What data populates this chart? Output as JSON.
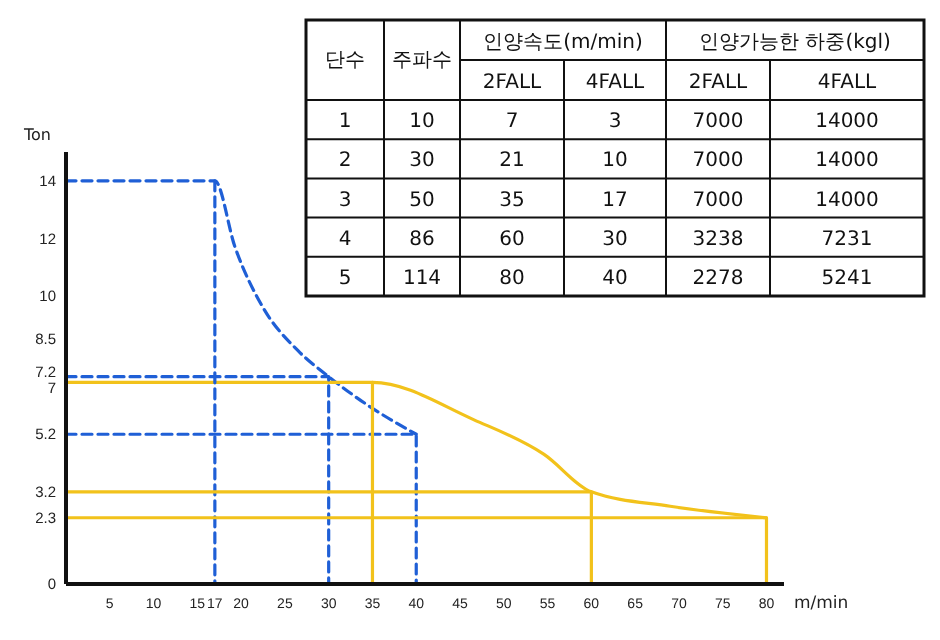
{
  "chart_data": {
    "type": "line",
    "xlabel": "m/min",
    "ylabel": "Ton",
    "xlim": [
      0,
      82
    ],
    "ylim": [
      0,
      15
    ],
    "xticks": [
      5,
      10,
      15,
      17,
      20,
      25,
      30,
      35,
      40,
      45,
      50,
      55,
      60,
      65,
      70,
      75,
      80
    ],
    "yticks": [
      0,
      2.3,
      3.2,
      5.2,
      7,
      7.2,
      8.5,
      10,
      12,
      14
    ],
    "grid": false,
    "marker": "none",
    "series": [
      {
        "color": "#1f5fd6",
        "line_style": "dashed",
        "x": [
          0,
          17,
          19.3,
          22.5,
          26.5,
          30,
          34.5,
          40
        ],
        "values": [
          14,
          14,
          11.7,
          9.6,
          8.1,
          7.2,
          6.2,
          5.2
        ]
      },
      {
        "color": "#f2c21b",
        "line_style": "solid",
        "x": [
          0,
          35,
          46.6,
          54.6,
          60,
          69,
          80
        ],
        "values": [
          7,
          7,
          5.7,
          4.5,
          3.2,
          2.7,
          2.3
        ]
      },
      {
        "color": "#1f5fd6",
        "line_style": "dashed",
        "x": [
          17,
          17
        ],
        "values": [
          14,
          0
        ]
      },
      {
        "color": "#1f5fd6",
        "line_style": "dashed",
        "x": [
          0,
          30,
          30
        ],
        "values": [
          7.2,
          7.2,
          0
        ]
      },
      {
        "color": "#1f5fd6",
        "line_style": "dashed",
        "x": [
          0,
          40,
          40
        ],
        "values": [
          5.2,
          5.2,
          0
        ]
      },
      {
        "color": "#f2c21b",
        "line_style": "solid",
        "x": [
          35,
          35
        ],
        "values": [
          7,
          0
        ]
      },
      {
        "color": "#f2c21b",
        "line_style": "solid",
        "x": [
          0,
          60,
          60
        ],
        "values": [
          3.2,
          3.2,
          0
        ]
      },
      {
        "color": "#f2c21b",
        "line_style": "solid",
        "x": [
          0,
          80,
          80
        ],
        "values": [
          2.3,
          2.3,
          0
        ]
      }
    ],
    "annotations": [
      "단수",
      "주파수",
      "인양속도(m/min)",
      "인양가능한 하중(kgl)",
      "2FALL",
      "4FALL",
      "2FALL",
      "4FALL",
      "1",
      "10",
      "7",
      "3",
      "7000",
      "14000",
      "2",
      "30",
      "21",
      "10",
      "7000",
      "14000",
      "3",
      "50",
      "35",
      "17",
      "7000",
      "14000",
      "4",
      "86",
      "60",
      "30",
      "3238",
      "7231",
      "5",
      "114",
      "80",
      "40",
      "2278",
      "5241"
    ]
  }
}
